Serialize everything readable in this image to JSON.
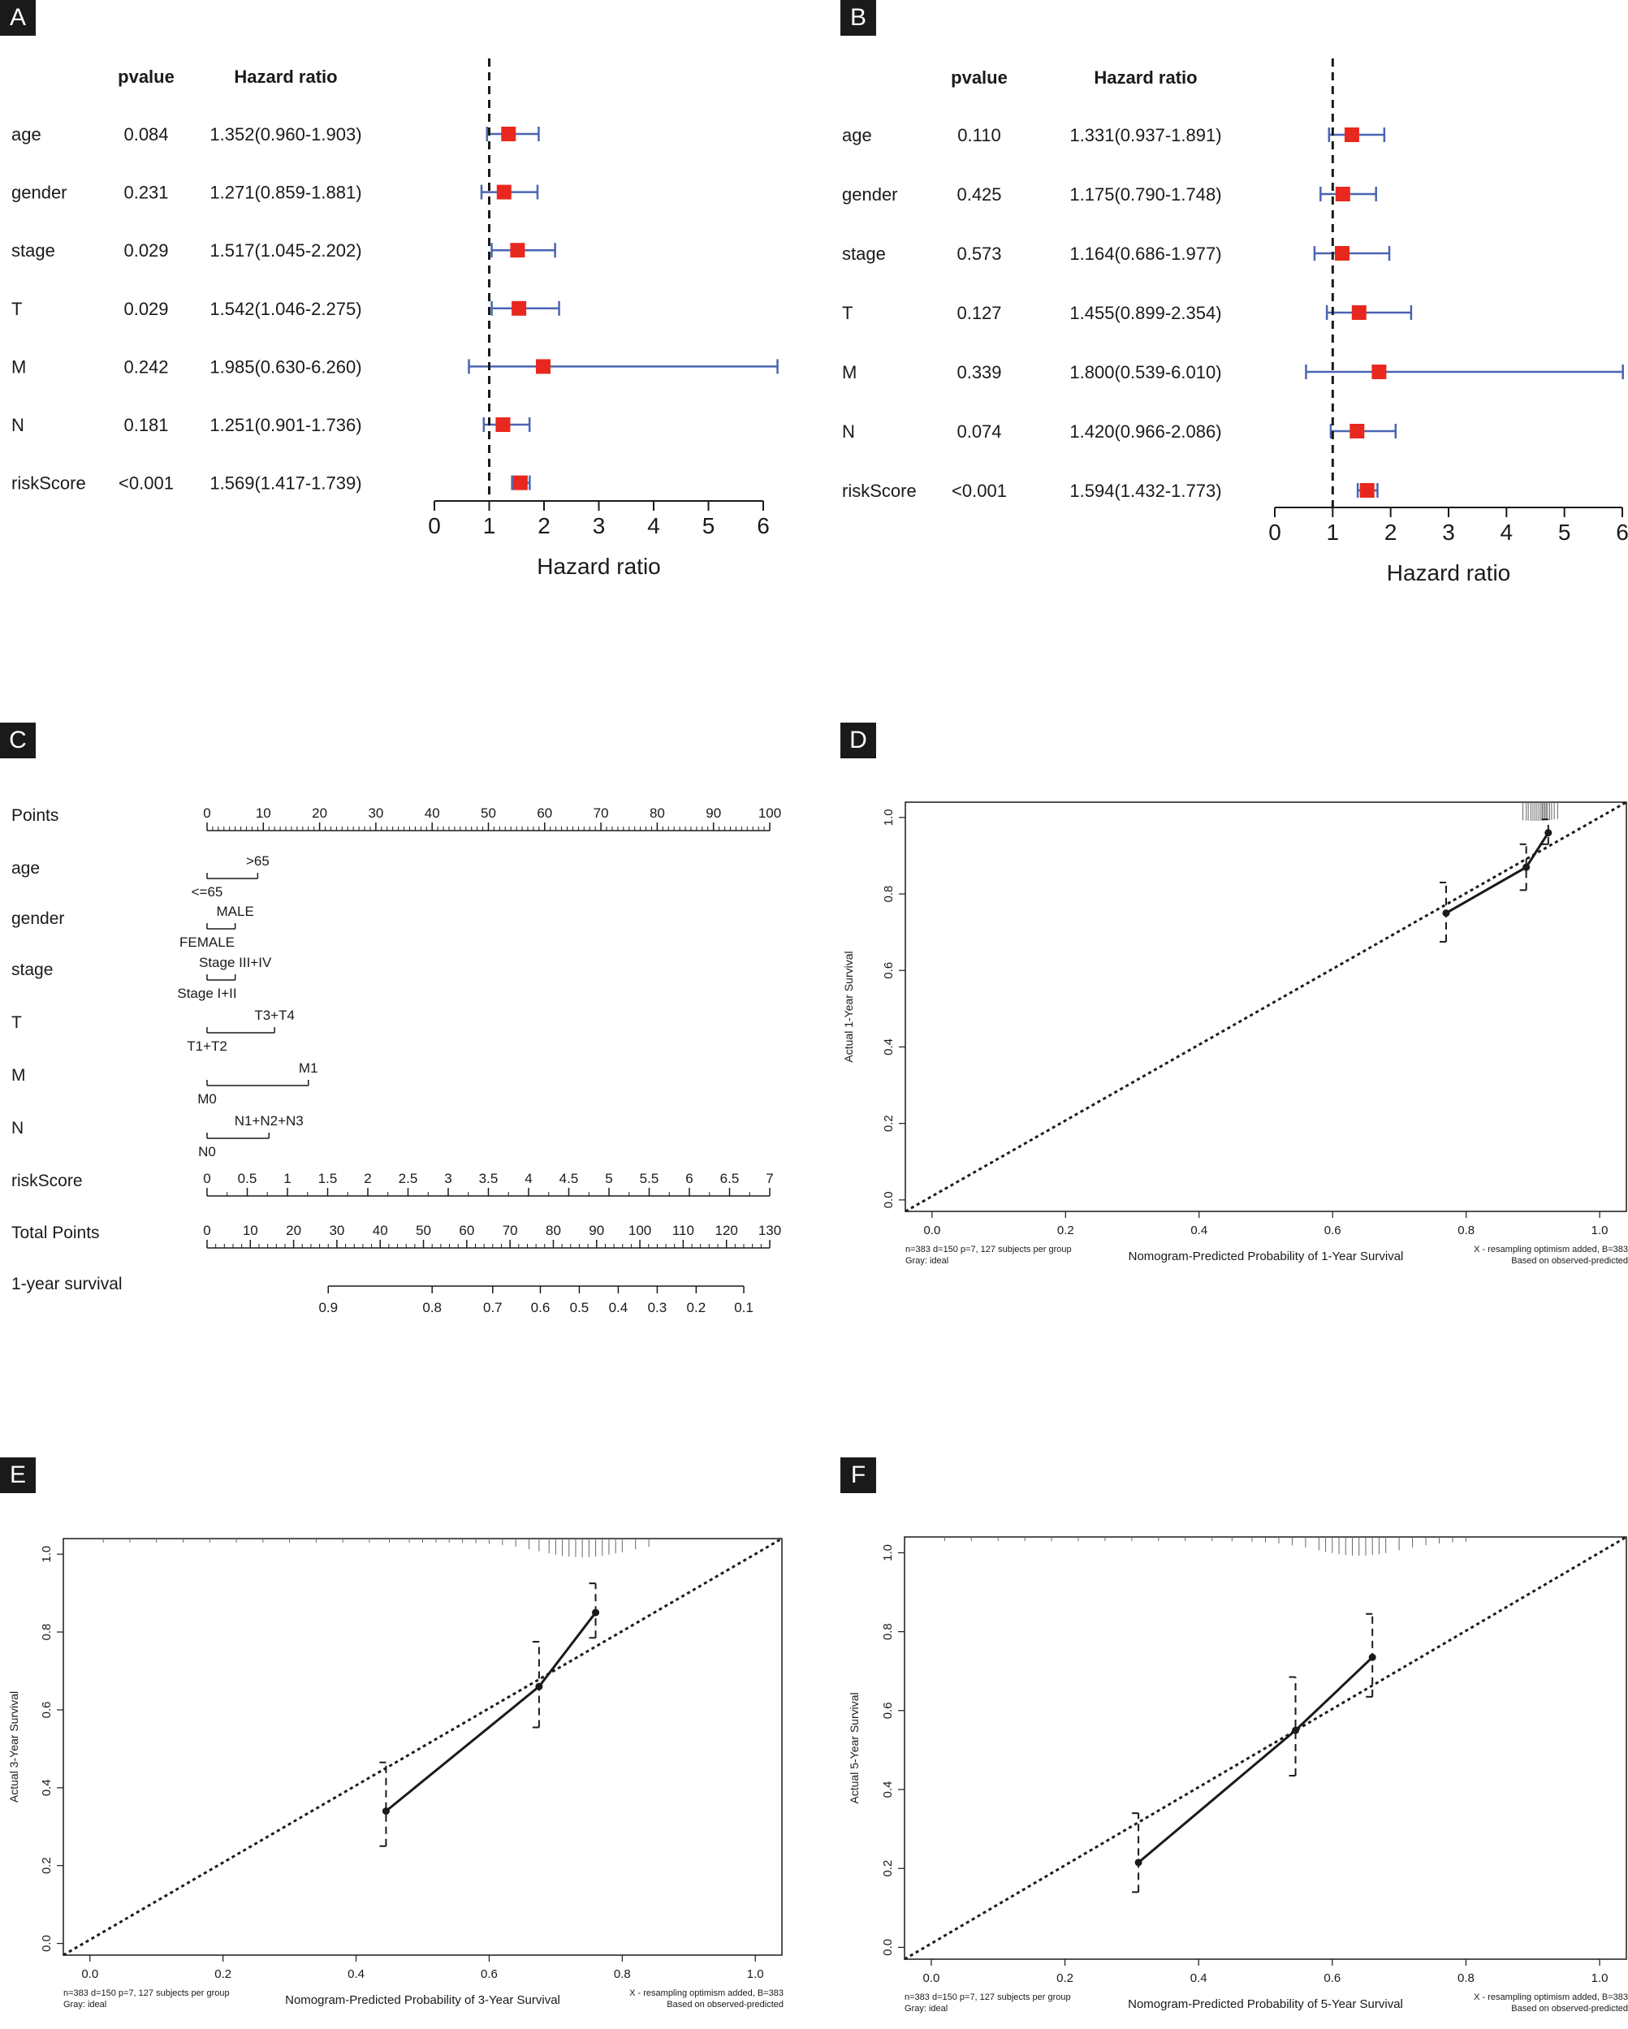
{
  "chart_data": [
    {
      "panel": "A",
      "type": "forest",
      "col_headers": {
        "pvalue": "pvalue",
        "hr": "Hazard ratio"
      },
      "rows": [
        {
          "label": "age",
          "pvalue": "0.084",
          "hr_text": "1.352(0.960-1.903)",
          "hr": 1.352,
          "lo": 0.96,
          "hi": 1.903
        },
        {
          "label": "gender",
          "pvalue": "0.231",
          "hr_text": "1.271(0.859-1.881)",
          "hr": 1.271,
          "lo": 0.859,
          "hi": 1.881
        },
        {
          "label": "stage",
          "pvalue": "0.029",
          "hr_text": "1.517(1.045-2.202)",
          "hr": 1.517,
          "lo": 1.045,
          "hi": 2.202
        },
        {
          "label": "T",
          "pvalue": "0.029",
          "hr_text": "1.542(1.046-2.275)",
          "hr": 1.542,
          "lo": 1.046,
          "hi": 2.275
        },
        {
          "label": "M",
          "pvalue": "0.242",
          "hr_text": "1.985(0.630-6.260)",
          "hr": 1.985,
          "lo": 0.63,
          "hi": 6.26
        },
        {
          "label": "N",
          "pvalue": "0.181",
          "hr_text": "1.251(0.901-1.736)",
          "hr": 1.251,
          "lo": 0.901,
          "hi": 1.736
        },
        {
          "label": "riskScore",
          "pvalue": "<0.001",
          "hr_text": "1.569(1.417-1.739)",
          "hr": 1.569,
          "lo": 1.417,
          "hi": 1.739
        }
      ],
      "xlim": [
        0,
        6
      ],
      "ticks": [
        "0",
        "1",
        "2",
        "3",
        "4",
        "5",
        "6"
      ],
      "ref": 1,
      "xlabel": "Hazard ratio"
    },
    {
      "panel": "B",
      "type": "forest",
      "col_headers": {
        "pvalue": "pvalue",
        "hr": "Hazard ratio"
      },
      "rows": [
        {
          "label": "age",
          "pvalue": "0.110",
          "hr_text": "1.331(0.937-1.891)",
          "hr": 1.331,
          "lo": 0.937,
          "hi": 1.891
        },
        {
          "label": "gender",
          "pvalue": "0.425",
          "hr_text": "1.175(0.790-1.748)",
          "hr": 1.175,
          "lo": 0.79,
          "hi": 1.748
        },
        {
          "label": "stage",
          "pvalue": "0.573",
          "hr_text": "1.164(0.686-1.977)",
          "hr": 1.164,
          "lo": 0.686,
          "hi": 1.977
        },
        {
          "label": "T",
          "pvalue": "0.127",
          "hr_text": "1.455(0.899-2.354)",
          "hr": 1.455,
          "lo": 0.899,
          "hi": 2.354
        },
        {
          "label": "M",
          "pvalue": "0.339",
          "hr_text": "1.800(0.539-6.010)",
          "hr": 1.8,
          "lo": 0.539,
          "hi": 6.01
        },
        {
          "label": "N",
          "pvalue": "0.074",
          "hr_text": "1.420(0.966-2.086)",
          "hr": 1.42,
          "lo": 0.966,
          "hi": 2.086
        },
        {
          "label": "riskScore",
          "pvalue": "<0.001",
          "hr_text": "1.594(1.432-1.773)",
          "hr": 1.594,
          "lo": 1.432,
          "hi": 1.773
        }
      ],
      "xlim": [
        0,
        6
      ],
      "ticks": [
        "0",
        "1",
        "2",
        "3",
        "4",
        "5",
        "6"
      ],
      "ref": 1,
      "xlabel": "Hazard ratio"
    },
    {
      "panel": "C",
      "type": "nomogram",
      "scales": [
        {
          "label": "Points",
          "kind": "axis",
          "range": [
            0,
            100
          ],
          "ticks": [
            "0",
            "10",
            "20",
            "30",
            "40",
            "50",
            "60",
            "70",
            "80",
            "90",
            "100"
          ],
          "tick_values": [
            0,
            10,
            20,
            30,
            40,
            50,
            60,
            70,
            80,
            90,
            100
          ],
          "minor": 1
        },
        {
          "label": "age",
          "kind": "categorical",
          "levels": [
            {
              "text": "<=65",
              "points": 0
            },
            {
              "text": ">65",
              "points": 9
            }
          ]
        },
        {
          "label": "gender",
          "kind": "categorical",
          "levels": [
            {
              "text": "FEMALE",
              "points": 0
            },
            {
              "text": "MALE",
              "points": 5
            }
          ]
        },
        {
          "label": "stage",
          "kind": "categorical",
          "levels": [
            {
              "text": "Stage I+II",
              "points": 0
            },
            {
              "text": "Stage III+IV",
              "points": 5
            }
          ]
        },
        {
          "label": "T",
          "kind": "categorical",
          "levels": [
            {
              "text": "T1+T2",
              "points": 0
            },
            {
              "text": "T3+T4",
              "points": 12
            }
          ]
        },
        {
          "label": "M",
          "kind": "categorical",
          "levels": [
            {
              "text": "M0",
              "points": 0
            },
            {
              "text": "M1",
              "points": 18
            }
          ]
        },
        {
          "label": "N",
          "kind": "categorical",
          "levels": [
            {
              "text": "N0",
              "points": 0
            },
            {
              "text": "N1+N2+N3",
              "points": 11
            }
          ]
        },
        {
          "label": "riskScore",
          "kind": "axis",
          "range": [
            0,
            7
          ],
          "ticks": [
            "0",
            "0.5",
            "1",
            "1.5",
            "2",
            "2.5",
            "3",
            "3.5",
            "4",
            "4.5",
            "5",
            "5.5",
            "6",
            "6.5",
            "7"
          ],
          "tick_values": [
            0,
            0.5,
            1,
            1.5,
            2,
            2.5,
            3,
            3.5,
            4,
            4.5,
            5,
            5.5,
            6,
            6.5,
            7
          ],
          "minor": 0.25
        },
        {
          "label": "Total Points",
          "kind": "axis",
          "range": [
            0,
            130
          ],
          "ticks": [
            "0",
            "10",
            "20",
            "30",
            "40",
            "50",
            "60",
            "70",
            "80",
            "90",
            "100",
            "110",
            "120",
            "130"
          ],
          "tick_values": [
            0,
            10,
            20,
            30,
            40,
            50,
            60,
            70,
            80,
            90,
            100,
            110,
            120,
            130
          ],
          "minor": 2
        },
        {
          "label": "1-year survival",
          "kind": "survival",
          "ticks": [
            "0.9",
            "0.8",
            "0.7",
            "0.6",
            "0.5",
            "0.4",
            "0.3",
            "0.2",
            "0.1"
          ],
          "total_points": [
            28,
            52,
            66,
            77,
            86,
            95,
            104,
            113,
            124
          ],
          "line_range": [
            28,
            124
          ]
        }
      ]
    },
    {
      "panel": "D",
      "type": "calibration",
      "xlabel": "Nomogram-Predicted Probability of 1-Year Survival",
      "ylabel": "Actual 1-Year Survival",
      "xlim": [
        -0.04,
        1.04
      ],
      "ylim": [
        -0.03,
        1.04
      ],
      "xticks": [
        "0.0",
        "0.2",
        "0.4",
        "0.6",
        "0.8",
        "1.0"
      ],
      "yticks": [
        "0.0",
        "0.2",
        "0.4",
        "0.6",
        "0.8",
        "1.0"
      ],
      "points": [
        {
          "x": 0.77,
          "y": 0.75,
          "lo": 0.675,
          "hi": 0.83
        },
        {
          "x": 0.89,
          "y": 0.87,
          "lo": 0.81,
          "hi": 0.93
        },
        {
          "x": 0.923,
          "y": 0.96,
          "lo": 0.93,
          "hi": 0.995
        }
      ],
      "rug": [
        0.885,
        0.89,
        0.893,
        0.897,
        0.9,
        0.903,
        0.906,
        0.909,
        0.912,
        0.914,
        0.916,
        0.918,
        0.92,
        0.922,
        0.925,
        0.928,
        0.932,
        0.937
      ],
      "note_left": [
        "n=383 d=150 p=7, 127 subjects per group",
        "Gray: ideal"
      ],
      "note_right": [
        "X - resampling optimism added, B=383",
        "Based on observed-predicted"
      ]
    },
    {
      "panel": "E",
      "type": "calibration",
      "xlabel": "Nomogram-Predicted Probability of 3-Year Survival",
      "ylabel": "Actual 3-Year Survival",
      "xlim": [
        -0.04,
        1.04
      ],
      "ylim": [
        -0.03,
        1.04
      ],
      "xticks": [
        "0.0",
        "0.2",
        "0.4",
        "0.6",
        "0.8",
        "1.0"
      ],
      "yticks": [
        "0.0",
        "0.2",
        "0.4",
        "0.6",
        "0.8",
        "1.0"
      ],
      "points": [
        {
          "x": 0.445,
          "y": 0.34,
          "lo": 0.25,
          "hi": 0.465
        },
        {
          "x": 0.675,
          "y": 0.66,
          "lo": 0.555,
          "hi": 0.775
        },
        {
          "x": 0.76,
          "y": 0.85,
          "lo": 0.785,
          "hi": 0.925
        }
      ],
      "rug": [
        0.02,
        0.06,
        0.1,
        0.14,
        0.18,
        0.22,
        0.26,
        0.3,
        0.34,
        0.38,
        0.42,
        0.45,
        0.48,
        0.5,
        0.52,
        0.54,
        0.56,
        0.58,
        0.6,
        0.62,
        0.64,
        0.66,
        0.675,
        0.69,
        0.7,
        0.71,
        0.72,
        0.73,
        0.74,
        0.75,
        0.76,
        0.77,
        0.78,
        0.79,
        0.8,
        0.82,
        0.84
      ],
      "note_left": [
        "n=383 d=150 p=7, 127 subjects per group",
        "Gray: ideal"
      ],
      "note_right": [
        "X - resampling optimism added, B=383",
        "Based on observed-predicted"
      ]
    },
    {
      "panel": "F",
      "type": "calibration",
      "xlabel": "Nomogram-Predicted Probability of 5-Year Survival",
      "ylabel": "Actual 5-Year Survival",
      "xlim": [
        -0.04,
        1.04
      ],
      "ylim": [
        -0.03,
        1.04
      ],
      "xticks": [
        "0.0",
        "0.2",
        "0.4",
        "0.6",
        "0.8",
        "1.0"
      ],
      "yticks": [
        "0.0",
        "0.2",
        "0.4",
        "0.6",
        "0.8",
        "1.0"
      ],
      "points": [
        {
          "x": 0.31,
          "y": 0.215,
          "lo": 0.14,
          "hi": 0.34
        },
        {
          "x": 0.545,
          "y": 0.55,
          "lo": 0.435,
          "hi": 0.685
        },
        {
          "x": 0.66,
          "y": 0.735,
          "lo": 0.635,
          "hi": 0.845
        }
      ],
      "rug": [
        0.02,
        0.06,
        0.1,
        0.14,
        0.18,
        0.22,
        0.26,
        0.3,
        0.34,
        0.38,
        0.42,
        0.45,
        0.48,
        0.5,
        0.52,
        0.54,
        0.56,
        0.58,
        0.59,
        0.6,
        0.61,
        0.62,
        0.63,
        0.64,
        0.65,
        0.66,
        0.67,
        0.68,
        0.7,
        0.72,
        0.74,
        0.76,
        0.78,
        0.8
      ],
      "note_left": [
        "n=383 d=150 p=7, 127 subjects per group",
        "Gray: ideal"
      ],
      "note_right": [
        "X - resampling optimism added, B=383",
        "Based on observed-predicted"
      ]
    }
  ],
  "colors": {
    "marker": "#e8281e",
    "ci": "#4a64b4",
    "ink": "#1a1a1a",
    "label_bg": "#1a1a1a"
  }
}
